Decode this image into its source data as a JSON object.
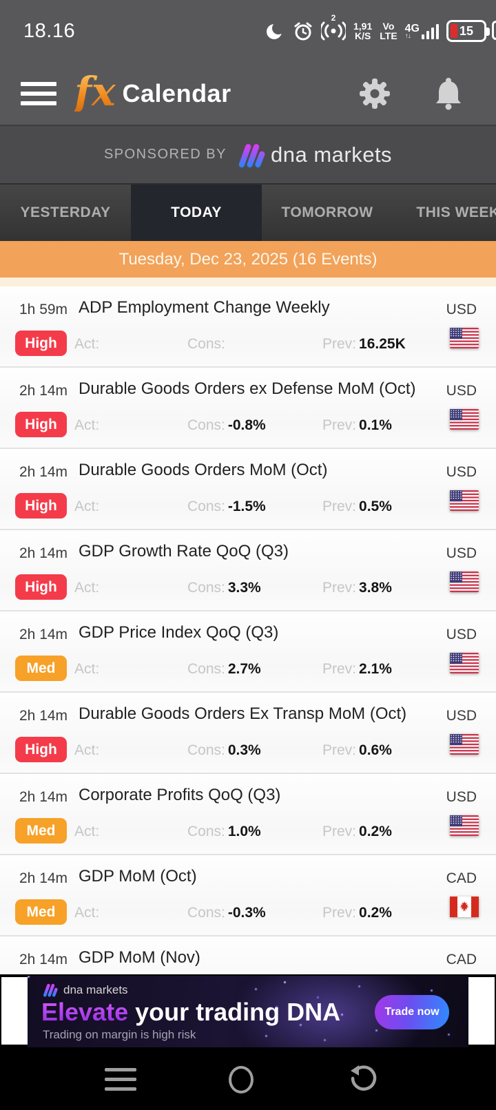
{
  "status_bar": {
    "time": "18.16",
    "hotspot_count": "2",
    "speed_top": "1,91",
    "speed_bottom": "K/S",
    "volte_top": "Vo",
    "volte_bottom": "LTE",
    "network": "4G",
    "battery_level": "15"
  },
  "header": {
    "logo": "fx",
    "title": "Calendar"
  },
  "sponsor": {
    "label": "SPONSORED BY",
    "brand": "dna markets"
  },
  "tabs": [
    {
      "label": "YESTERDAY",
      "active": false
    },
    {
      "label": "TODAY",
      "active": true
    },
    {
      "label": "TOMORROW",
      "active": false
    },
    {
      "label": "THIS WEEK",
      "active": false
    }
  ],
  "date_banner": {
    "text": "Tuesday, Dec 23, 2025 (16 Events)"
  },
  "labels": {
    "act": "Act:",
    "cons": "Cons:",
    "prev": "Prev:"
  },
  "events": [
    {
      "time": "1h 59m",
      "title": "ADP Employment Change Weekly",
      "currency": "USD",
      "impact": "High",
      "act": "",
      "cons": "",
      "prev": "16.25K",
      "flag": "us"
    },
    {
      "time": "2h 14m",
      "title": "Durable Goods Orders ex Defense MoM (Oct)",
      "currency": "USD",
      "impact": "High",
      "act": "",
      "cons": "-0.8%",
      "prev": "0.1%",
      "flag": "us"
    },
    {
      "time": "2h 14m",
      "title": "Durable Goods Orders MoM (Oct)",
      "currency": "USD",
      "impact": "High",
      "act": "",
      "cons": "-1.5%",
      "prev": "0.5%",
      "flag": "us"
    },
    {
      "time": "2h 14m",
      "title": "GDP Growth Rate QoQ (Q3)",
      "currency": "USD",
      "impact": "High",
      "act": "",
      "cons": "3.3%",
      "prev": "3.8%",
      "flag": "us"
    },
    {
      "time": "2h 14m",
      "title": "GDP Price Index QoQ (Q3)",
      "currency": "USD",
      "impact": "Med",
      "act": "",
      "cons": "2.7%",
      "prev": "2.1%",
      "flag": "us"
    },
    {
      "time": "2h 14m",
      "title": "Durable Goods Orders Ex Transp MoM (Oct)",
      "currency": "USD",
      "impact": "High",
      "act": "",
      "cons": "0.3%",
      "prev": "0.6%",
      "flag": "us"
    },
    {
      "time": "2h 14m",
      "title": "Corporate Profits QoQ (Q3)",
      "currency": "USD",
      "impact": "Med",
      "act": "",
      "cons": "1.0%",
      "prev": "0.2%",
      "flag": "us"
    },
    {
      "time": "2h 14m",
      "title": "GDP MoM (Oct)",
      "currency": "CAD",
      "impact": "Med",
      "act": "",
      "cons": "-0.3%",
      "prev": "0.2%",
      "flag": "ca"
    },
    {
      "time": "2h 14m",
      "title": "GDP MoM (Nov)",
      "currency": "CAD",
      "impact": "",
      "act": "",
      "cons": "",
      "prev": "",
      "flag": "ca"
    }
  ],
  "ad": {
    "brand": "dna markets",
    "headline_accent": "Elevate",
    "headline_rest": " your trading DNA",
    "disclaimer": "Trading on margin is high risk",
    "cta": "Trade now"
  },
  "colors": {
    "accent_orange": "#f2a259",
    "impact_high": "#f43b4a",
    "impact_med": "#f7a128",
    "header_bg": "#58585a",
    "active_tab_bg": "#24262e"
  }
}
